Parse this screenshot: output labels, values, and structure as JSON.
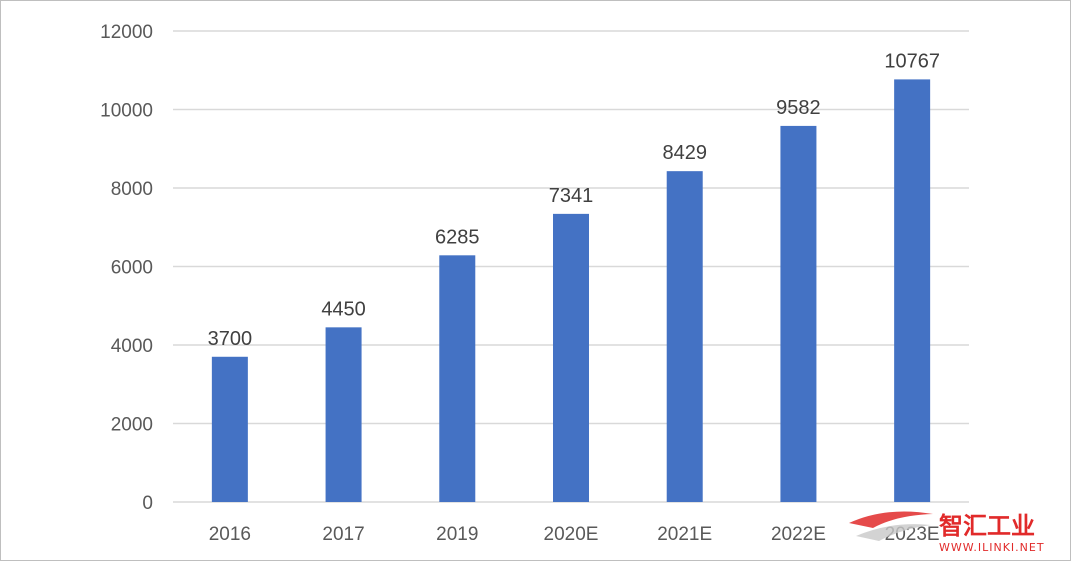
{
  "chart_data": {
    "type": "bar",
    "categories": [
      "2016",
      "2017",
      "2019",
      "2020E",
      "2021E",
      "2022E",
      "2023E"
    ],
    "values": [
      3700,
      4450,
      6285,
      7341,
      8429,
      9582,
      10767
    ],
    "title": "",
    "xlabel": "",
    "ylabel": "",
    "ylim": [
      0,
      12000
    ],
    "yticks": [
      0,
      2000,
      4000,
      6000,
      8000,
      10000,
      12000
    ],
    "grid": true,
    "legend": "none",
    "bar_color": "#4472c4",
    "grid_color": "#d9d9d9"
  },
  "watermark": {
    "brand": "智汇工业",
    "url": "WWW.ILINKI.NET",
    "color": "#e12a2a"
  }
}
